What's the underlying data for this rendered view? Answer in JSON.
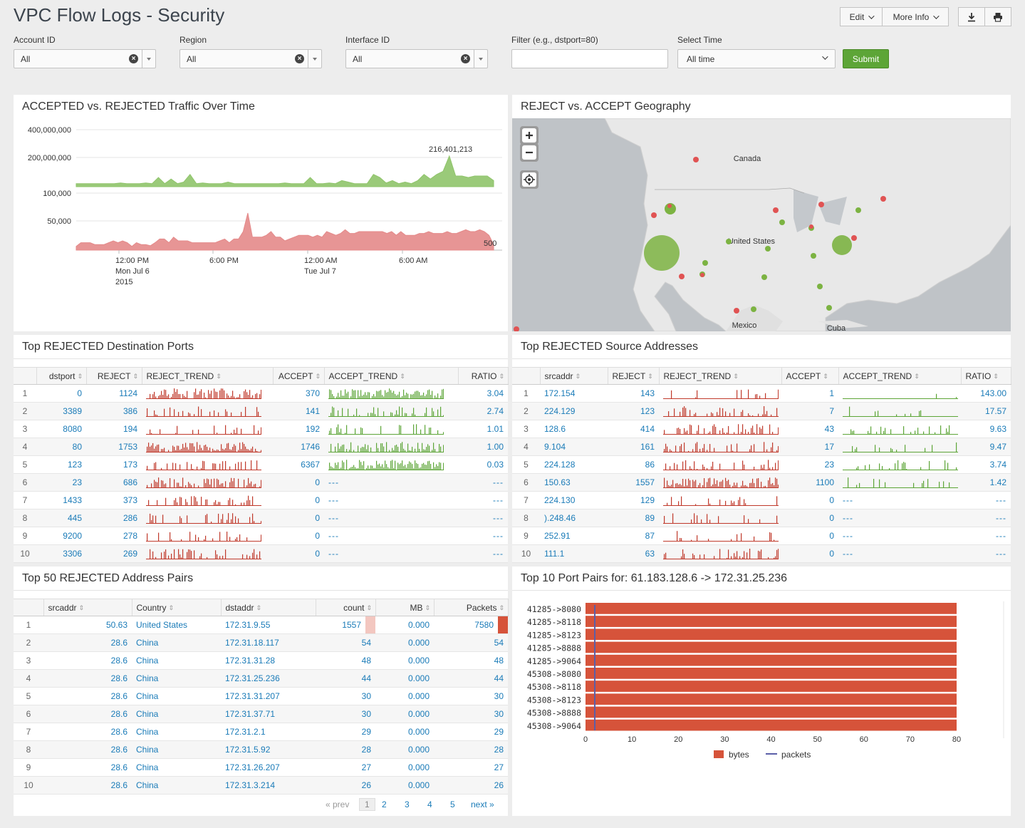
{
  "header": {
    "title": "VPC Flow Logs - Security",
    "edit_label": "Edit",
    "more_info_label": "More Info"
  },
  "filters": {
    "account": {
      "label": "Account ID",
      "value": "All"
    },
    "region": {
      "label": "Region",
      "value": "All"
    },
    "interface": {
      "label": "Interface ID",
      "value": "All"
    },
    "filter": {
      "label": "Filter (e.g., dstport=80)",
      "value": ""
    },
    "time": {
      "label": "Select Time",
      "value": "All time"
    },
    "submit_label": "Submit"
  },
  "traffic": {
    "title": "ACCEPTED vs. REJECTED Traffic Over Time",
    "chart_data": {
      "type": "area",
      "y_ticks": [
        "400,000,000",
        "200,000,000",
        "100,000",
        "50,000"
      ],
      "x_ticks": [
        {
          "l1": "12:00 PM",
          "l2": "Mon Jul 6",
          "l3": "2015"
        },
        {
          "l1": "6:00 PM",
          "l2": "",
          "l3": ""
        },
        {
          "l1": "12:00 AM",
          "l2": "Tue Jul 7",
          "l3": ""
        },
        {
          "l1": "6:00 AM",
          "l2": "",
          "l3": ""
        }
      ],
      "annotation_peak": "216,401,213",
      "annotation_last": "500",
      "series": [
        {
          "color": "#8fc46a",
          "values": [
            0.1,
            0.1,
            0.1,
            0.1,
            0.1,
            0.1,
            0.1,
            0.12,
            0.1,
            0.1,
            0.1,
            0.12,
            0.1,
            0.3,
            0.1,
            0.25,
            0.1,
            0.15,
            0.4,
            0.1,
            0.12,
            0.1,
            0.1,
            0.1,
            0.15,
            0.1,
            0.1,
            0.1,
            0.1,
            0.1,
            0.1,
            0.1,
            0.1,
            0.12,
            0.1,
            0.1,
            0.1,
            0.3,
            0.1,
            0.1,
            0.12,
            0.1,
            0.2,
            0.15,
            0.1,
            0.1,
            0.1,
            0.4,
            0.3,
            0.12,
            0.2,
            0.1,
            0.15,
            0.1,
            0.2,
            0.4,
            0.25,
            0.4,
            0.5,
            1.0,
            0.35,
            0.35,
            0.3,
            0.35,
            0.35,
            0.35,
            0.2
          ]
        },
        {
          "color": "#e48a8a",
          "values": [
            0.1,
            0.2,
            0.2,
            0.2,
            0.15,
            0.15,
            0.15,
            0.2,
            0.25,
            0.2,
            0.25,
            0.2,
            0.1,
            0.2,
            0.15,
            0.15,
            0.12,
            0.2,
            0.3,
            0.3,
            0.2,
            0.35,
            0.25,
            0.25,
            0.25,
            0.2,
            0.2,
            0.2,
            0.2,
            0.2,
            0.2,
            0.25,
            0.3,
            0.2,
            0.3,
            0.3,
            0.5,
            1.0,
            0.35,
            0.35,
            0.35,
            0.4,
            0.5,
            0.35,
            0.35,
            0.25,
            0.3,
            0.35,
            0.4,
            0.4,
            0.4,
            0.35,
            0.4,
            0.35,
            0.5,
            0.45,
            0.4,
            0.45,
            0.55,
            0.45,
            0.45,
            0.5,
            0.5,
            0.5,
            0.5,
            0.5,
            0.5,
            0.45,
            0.5,
            0.4,
            0.5,
            0.4,
            0.4,
            0.4,
            0.45,
            0.45,
            0.5,
            0.45,
            0.45,
            0.45,
            0.5,
            0.45,
            0.45,
            0.5,
            0.55,
            0.5,
            0.5,
            0.55,
            0.5,
            0.4,
            0.15
          ]
        }
      ]
    }
  },
  "geo": {
    "title": "REJECT vs. ACCEPT Geography",
    "labels": {
      "canada": "Canada",
      "usa": "United States",
      "mexico": "Mexico",
      "cuba": "Cuba"
    }
  },
  "ports": {
    "title": "Top REJECTED Destination Ports",
    "columns": [
      "dstport",
      "REJECT",
      "REJECT_TREND",
      "ACCEPT",
      "ACCEPT_TREND",
      "RATIO"
    ],
    "rows": [
      {
        "i": "1",
        "key": "0",
        "reject": "1124",
        "accept": "370",
        "ratio": "3.04"
      },
      {
        "i": "2",
        "key": "3389",
        "reject": "386",
        "accept": "141",
        "ratio": "2.74"
      },
      {
        "i": "3",
        "key": "8080",
        "reject": "194",
        "accept": "192",
        "ratio": "1.01"
      },
      {
        "i": "4",
        "key": "80",
        "reject": "1753",
        "accept": "1746",
        "ratio": "1.00"
      },
      {
        "i": "5",
        "key": "123",
        "reject": "173",
        "accept": "6367",
        "ratio": "0.03"
      },
      {
        "i": "6",
        "key": "23",
        "reject": "686",
        "accept": "0",
        "ratio": "---"
      },
      {
        "i": "7",
        "key": "1433",
        "reject": "373",
        "accept": "0",
        "ratio": "---"
      },
      {
        "i": "8",
        "key": "445",
        "reject": "286",
        "accept": "0",
        "ratio": "---"
      },
      {
        "i": "9",
        "key": "9200",
        "reject": "278",
        "accept": "0",
        "ratio": "---"
      },
      {
        "i": "10",
        "key": "3306",
        "reject": "269",
        "accept": "0",
        "ratio": "---"
      }
    ]
  },
  "sources": {
    "title": "Top REJECTED Source Addresses",
    "columns": [
      "srcaddr",
      "REJECT",
      "REJECT_TREND",
      "ACCEPT",
      "ACCEPT_TREND",
      "RATIO"
    ],
    "rows": [
      {
        "i": "1",
        "key": "172.154",
        "reject": "143",
        "accept": "1",
        "ratio": "143.00"
      },
      {
        "i": "2",
        "key": "224.129",
        "reject": "123",
        "accept": "7",
        "ratio": "17.57"
      },
      {
        "i": "3",
        "key": "128.6",
        "reject": "414",
        "accept": "43",
        "ratio": "9.63"
      },
      {
        "i": "4",
        "key": "9.104",
        "reject": "161",
        "accept": "17",
        "ratio": "9.47"
      },
      {
        "i": "5",
        "key": "224.128",
        "reject": "86",
        "accept": "23",
        "ratio": "3.74"
      },
      {
        "i": "6",
        "key": "150.63",
        "reject": "1557",
        "accept": "1100",
        "ratio": "1.42"
      },
      {
        "i": "7",
        "key": "224.130",
        "reject": "129",
        "accept": "0",
        "ratio": "---"
      },
      {
        "i": "8",
        "key": ").248.46",
        "reject": "89",
        "accept": "0",
        "ratio": "---"
      },
      {
        "i": "9",
        "key": "252.91",
        "reject": "87",
        "accept": "0",
        "ratio": "---"
      },
      {
        "i": "10",
        "key": "111.1",
        "reject": "63",
        "accept": "0",
        "ratio": "---"
      }
    ]
  },
  "pairs": {
    "title": "Top 50 REJECTED Address Pairs",
    "columns": [
      "srcaddr",
      "Country",
      "dstaddr",
      "count",
      "MB",
      "Packets"
    ],
    "rows": [
      {
        "i": "1",
        "src": "50.63",
        "country": "United States",
        "dst": "172.31.9.55",
        "count": "1557",
        "mb": "0.000",
        "packets": "7580"
      },
      {
        "i": "2",
        "src": "28.6",
        "country": "China",
        "dst": "172.31.18.117",
        "count": "54",
        "mb": "0.000",
        "packets": "54"
      },
      {
        "i": "3",
        "src": "28.6",
        "country": "China",
        "dst": "172.31.31.28",
        "count": "48",
        "mb": "0.000",
        "packets": "48"
      },
      {
        "i": "4",
        "src": "28.6",
        "country": "China",
        "dst": "172.31.25.236",
        "count": "44",
        "mb": "0.000",
        "packets": "44"
      },
      {
        "i": "5",
        "src": "28.6",
        "country": "China",
        "dst": "172.31.31.207",
        "count": "30",
        "mb": "0.000",
        "packets": "30"
      },
      {
        "i": "6",
        "src": "28.6",
        "country": "China",
        "dst": "172.31.37.71",
        "count": "30",
        "mb": "0.000",
        "packets": "30"
      },
      {
        "i": "7",
        "src": "28.6",
        "country": "China",
        "dst": "172.31.2.1",
        "count": "29",
        "mb": "0.000",
        "packets": "29"
      },
      {
        "i": "8",
        "src": "28.6",
        "country": "China",
        "dst": "172.31.5.92",
        "count": "28",
        "mb": "0.000",
        "packets": "28"
      },
      {
        "i": "9",
        "src": "28.6",
        "country": "China",
        "dst": "172.31.26.207",
        "count": "27",
        "mb": "0.000",
        "packets": "27"
      },
      {
        "i": "10",
        "src": "28.6",
        "country": "China",
        "dst": "172.31.3.214",
        "count": "26",
        "mb": "0.000",
        "packets": "26"
      }
    ],
    "pager": {
      "prev": "« prev",
      "pages": [
        "1",
        "2",
        "3",
        "4",
        "5"
      ],
      "next": "next »"
    }
  },
  "portpairs": {
    "title": "Top 10 Port Pairs for: 61.183.128.6 -> 172.31.25.236",
    "chart_data": {
      "type": "bar",
      "orientation": "horizontal",
      "categories": [
        "41285->8080",
        "41285->8118",
        "41285->8123",
        "41285->8888",
        "41285->9064",
        "45308->8080",
        "45308->8118",
        "45308->8123",
        "45308->8888",
        "45308->9064"
      ],
      "series": [
        {
          "name": "bytes",
          "color": "#d6533a",
          "values": [
            80,
            80,
            80,
            80,
            80,
            80,
            80,
            80,
            80,
            80
          ]
        },
        {
          "name": "packets",
          "color": "#5b5fa8",
          "values": [
            2,
            2,
            2,
            2,
            2,
            2,
            2,
            2,
            2,
            2
          ]
        }
      ],
      "xlim": [
        0,
        80
      ],
      "x_ticks": [
        "0",
        "10",
        "20",
        "30",
        "40",
        "50",
        "60",
        "70",
        "80"
      ],
      "legend": "bottom"
    }
  }
}
